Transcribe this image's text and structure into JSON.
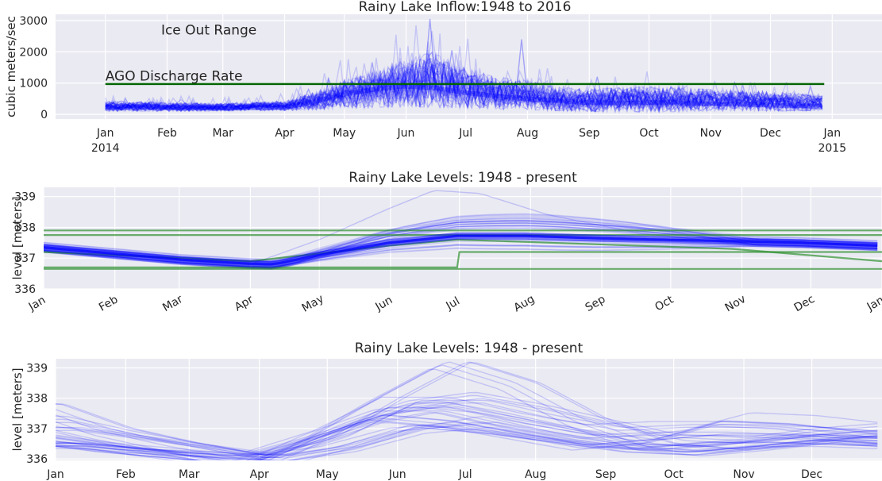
{
  "chart_data": [
    {
      "type": "line",
      "title": "Rainy Lake Inflow:1948 to 2016",
      "xlabel": "",
      "ylabel": "cubic meters/sec",
      "ylim": [
        -150,
        3200
      ],
      "yticks": [
        0,
        1000,
        2000,
        3000
      ],
      "xticks": [
        {
          "label": "Jan",
          "sub": "2014",
          "day": 0
        },
        {
          "label": "Feb",
          "sub": "",
          "day": 31
        },
        {
          "label": "Mar",
          "sub": "",
          "day": 59
        },
        {
          "label": "Apr",
          "sub": "",
          "day": 90
        },
        {
          "label": "May",
          "sub": "",
          "day": 120
        },
        {
          "label": "Jun",
          "sub": "",
          "day": 151
        },
        {
          "label": "Jul",
          "sub": "",
          "day": 181
        },
        {
          "label": "Aug",
          "sub": "",
          "day": 212
        },
        {
          "label": "Sep",
          "sub": "",
          "day": 243
        },
        {
          "label": "Oct",
          "sub": "",
          "day": 273
        },
        {
          "label": "Nov",
          "sub": "",
          "day": 304
        },
        {
          "label": "Dec",
          "sub": "",
          "day": 334
        },
        {
          "label": "Jan",
          "sub": "2015",
          "day": 365
        }
      ],
      "xlim": [
        -25,
        390
      ],
      "annotations": [
        {
          "text": "Ice Out Range",
          "day": 28,
          "y": 2550
        },
        {
          "text": "AGO Discharge Rate",
          "day": 0,
          "y": 1080
        }
      ],
      "reference_line": {
        "name": "AGO Discharge Rate",
        "y": 970,
        "x_from_day": 0,
        "x_to_day": 361,
        "color": "#006400"
      },
      "series_color": "#0000ff",
      "envelope": {
        "days": [
          0,
          30,
          60,
          90,
          105,
          120,
          135,
          150,
          165,
          180,
          195,
          210,
          225,
          240,
          260,
          280,
          300,
          320,
          340,
          361
        ],
        "upper": [
          420,
          380,
          350,
          420,
          700,
          1100,
          1400,
          1750,
          2000,
          1500,
          1200,
          1100,
          900,
          800,
          850,
          900,
          800,
          750,
          700,
          600
        ],
        "lower": [
          100,
          100,
          110,
          120,
          150,
          200,
          220,
          250,
          230,
          200,
          180,
          150,
          120,
          100,
          80,
          80,
          100,
          120,
          110,
          120
        ],
        "mean": [
          230,
          220,
          200,
          220,
          400,
          650,
          800,
          900,
          850,
          700,
          600,
          500,
          450,
          380,
          360,
          380,
          340,
          320,
          280,
          250
        ]
      },
      "peaks": [
        {
          "day": 163,
          "value": 3050
        },
        {
          "day": 209,
          "value": 2400
        },
        {
          "day": 174,
          "value": 2050
        },
        {
          "day": 163,
          "value": 1800
        },
        {
          "day": 102,
          "value": 800
        },
        {
          "day": 247,
          "value": 1200
        }
      ]
    },
    {
      "type": "line",
      "title": "Rainy Lake Levels: 1948 - present",
      "xlabel": "",
      "ylabel": "level [meters]",
      "ylim": [
        336,
        339.3
      ],
      "yticks": [
        336,
        337,
        338,
        339
      ],
      "xlim": [
        0,
        365
      ],
      "xticks": [
        {
          "label": "Jan",
          "day": 0
        },
        {
          "label": "Feb",
          "day": 31
        },
        {
          "label": "Mar",
          "day": 59
        },
        {
          "label": "Apr",
          "day": 90
        },
        {
          "label": "May",
          "day": 120
        },
        {
          "label": "Jun",
          "day": 151
        },
        {
          "label": "Jul",
          "day": 181
        },
        {
          "label": "Aug",
          "day": 212
        },
        {
          "label": "Sep",
          "day": 243
        },
        {
          "label": "Oct",
          "day": 273
        },
        {
          "label": "Nov",
          "day": 304
        },
        {
          "label": "Dec",
          "day": 334
        },
        {
          "label": "Jan",
          "day": 365
        }
      ],
      "series_color": "#0000ff",
      "band_color": "#228b22",
      "mean": {
        "days": [
          0,
          30,
          60,
          90,
          100,
          120,
          150,
          180,
          210,
          240,
          270,
          300,
          330,
          365
        ],
        "values": [
          337.35,
          337.15,
          336.95,
          336.82,
          336.8,
          337.1,
          337.5,
          337.72,
          337.72,
          337.65,
          337.6,
          337.55,
          337.5,
          337.4
        ]
      },
      "high_curve": {
        "days": [
          0,
          90,
          120,
          150,
          170,
          190,
          220,
          260,
          300,
          365
        ],
        "values": [
          337.3,
          336.8,
          337.6,
          338.6,
          339.2,
          339.1,
          338.4,
          337.8,
          337.6,
          337.4
        ]
      },
      "rule_curves": [
        {
          "days": [
            0,
            365
          ],
          "values": [
            337.9,
            337.9
          ]
        },
        {
          "days": [
            0,
            365
          ],
          "values": [
            337.75,
            337.75
          ]
        },
        {
          "days": [
            0,
            365
          ],
          "values": [
            336.65,
            336.65
          ]
        },
        {
          "days": [
            0,
            180,
            181,
            365
          ],
          "values": [
            336.7,
            336.7,
            337.2,
            337.2
          ]
        },
        {
          "days": [
            0,
            90,
            150,
            180,
            300,
            365
          ],
          "values": [
            337.2,
            336.9,
            337.4,
            337.6,
            337.3,
            336.9
          ]
        }
      ]
    },
    {
      "type": "line",
      "title": "Rainy Lake Levels: 1948 - present",
      "xlabel": "",
      "ylabel": "level [meters]",
      "ylim": [
        335.95,
        339.3
      ],
      "yticks": [
        336,
        337,
        338,
        339
      ],
      "xlim": [
        0,
        365
      ],
      "xticks": [
        {
          "label": "Jan",
          "day": 0
        },
        {
          "label": "Feb",
          "day": 31
        },
        {
          "label": "Mar",
          "day": 59
        },
        {
          "label": "Apr",
          "day": 90
        },
        {
          "label": "May",
          "day": 120
        },
        {
          "label": "Jun",
          "day": 151
        },
        {
          "label": "Jul",
          "day": 181
        },
        {
          "label": "Aug",
          "day": 212
        },
        {
          "label": "Sep",
          "day": 243
        },
        {
          "label": "Oct",
          "day": 273
        },
        {
          "label": "Nov",
          "day": 304
        },
        {
          "label": "Dec",
          "day": 334
        }
      ],
      "series_color": "#0000ff",
      "curves": [
        {
          "days": [
            0,
            30,
            60,
            90,
            120,
            150,
            180,
            210,
            240,
            270,
            300,
            330,
            365
          ],
          "values": [
            337.7,
            336.9,
            336.4,
            336.0,
            336.6,
            337.9,
            339.1,
            338.4,
            337.2,
            336.4,
            336.2,
            336.4,
            336.7
          ]
        },
        {
          "days": [
            0,
            30,
            60,
            90,
            120,
            150,
            180,
            210,
            240,
            270,
            300,
            330,
            365
          ],
          "values": [
            337.2,
            336.7,
            336.3,
            335.9,
            336.9,
            337.7,
            338.0,
            337.6,
            337.1,
            336.6,
            336.5,
            336.8,
            337.0
          ]
        },
        {
          "days": [
            0,
            30,
            60,
            90,
            120,
            150,
            180,
            210,
            240,
            270,
            300,
            330,
            365
          ],
          "values": [
            336.8,
            336.5,
            336.2,
            335.9,
            336.8,
            337.5,
            337.3,
            336.9,
            336.5,
            336.7,
            337.3,
            337.2,
            336.9
          ]
        },
        {
          "days": [
            0,
            30,
            60,
            90,
            120,
            150,
            180,
            210,
            240,
            270,
            300,
            330,
            365
          ],
          "values": [
            336.6,
            336.3,
            336.1,
            335.9,
            336.5,
            337.2,
            337.6,
            337.1,
            336.7,
            336.4,
            336.6,
            336.6,
            336.5
          ]
        },
        {
          "days": [
            0,
            30,
            60,
            90,
            120,
            150,
            180,
            210,
            240,
            270,
            300,
            330,
            365
          ],
          "values": [
            336.4,
            336.2,
            336.0,
            335.9,
            336.3,
            337.0,
            336.8,
            336.5,
            336.2,
            336.1,
            336.3,
            336.5,
            336.3
          ]
        },
        {
          "days": [
            0,
            30,
            60,
            90,
            120,
            150,
            180,
            210,
            240,
            270,
            300,
            330,
            365
          ],
          "values": [
            336.9,
            336.6,
            336.3,
            336.0,
            336.7,
            337.8,
            337.8,
            337.3,
            336.9,
            337.0,
            337.0,
            336.9,
            336.7
          ]
        },
        {
          "days": [
            0,
            30,
            60,
            90,
            120,
            150,
            180,
            210,
            240,
            270,
            300,
            330,
            365
          ],
          "values": [
            336.3,
            336.1,
            336.0,
            335.9,
            336.2,
            336.8,
            337.0,
            336.6,
            336.3,
            336.2,
            336.4,
            336.6,
            336.4
          ]
        }
      ]
    }
  ]
}
